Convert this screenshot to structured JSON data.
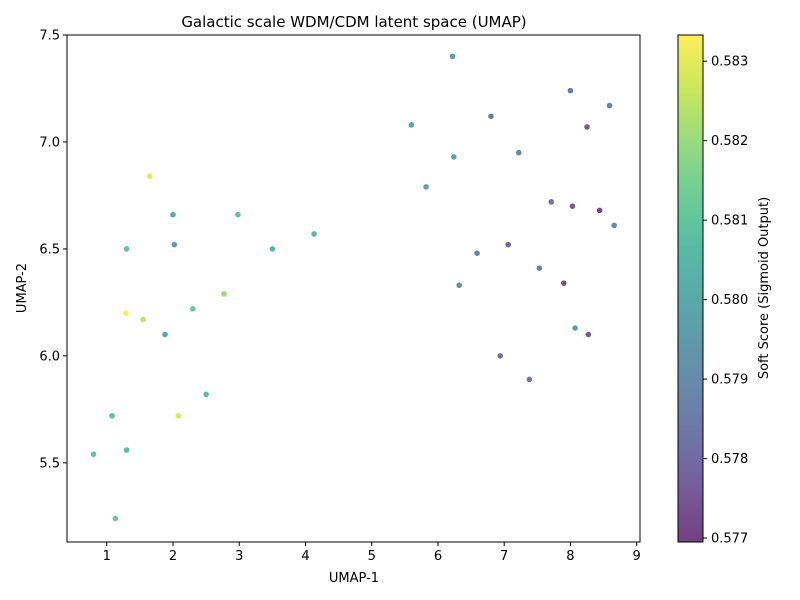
{
  "chart_data": {
    "type": "scatter",
    "title": "Galactic scale WDM/CDM latent space (UMAP)",
    "xlabel": "UMAP-1",
    "ylabel": "UMAP-2",
    "xlim": [
      0.4,
      9.05
    ],
    "ylim": [
      5.13,
      7.5
    ],
    "xticks": [
      1,
      2,
      3,
      4,
      5,
      6,
      7,
      8,
      9
    ],
    "yticks": [
      5.5,
      6.0,
      6.5,
      7.0,
      7.5
    ],
    "ytick_format": 1,
    "grid": false,
    "colorbar": {
      "label": "Soft Score (Sigmoid Output)",
      "colormap": "viridis",
      "range": [
        0.57695,
        0.58333
      ],
      "ticks": [
        0.577,
        0.578,
        0.579,
        0.58,
        0.581,
        0.582,
        0.583
      ]
    },
    "points": [
      {
        "x": 0.8,
        "y": 5.54,
        "c": 0.581
      },
      {
        "x": 1.13,
        "y": 5.24,
        "c": 0.5812
      },
      {
        "x": 1.08,
        "y": 5.72,
        "c": 0.5808
      },
      {
        "x": 1.3,
        "y": 5.56,
        "c": 0.5808
      },
      {
        "x": 1.3,
        "y": 6.5,
        "c": 0.581
      },
      {
        "x": 1.29,
        "y": 6.2,
        "c": 0.5833
      },
      {
        "x": 1.55,
        "y": 6.17,
        "c": 0.5825
      },
      {
        "x": 1.65,
        "y": 6.84,
        "c": 0.583
      },
      {
        "x": 1.88,
        "y": 6.1,
        "c": 0.58
      },
      {
        "x": 2.0,
        "y": 6.66,
        "c": 0.58
      },
      {
        "x": 2.02,
        "y": 6.52,
        "c": 0.5795
      },
      {
        "x": 2.08,
        "y": 5.72,
        "c": 0.5828
      },
      {
        "x": 2.3,
        "y": 6.22,
        "c": 0.5812
      },
      {
        "x": 2.5,
        "y": 5.82,
        "c": 0.5808
      },
      {
        "x": 2.77,
        "y": 6.29,
        "c": 0.582
      },
      {
        "x": 2.98,
        "y": 6.66,
        "c": 0.581
      },
      {
        "x": 3.5,
        "y": 6.5,
        "c": 0.5805
      },
      {
        "x": 4.13,
        "y": 6.57,
        "c": 0.5805
      },
      {
        "x": 5.6,
        "y": 7.08,
        "c": 0.58
      },
      {
        "x": 5.82,
        "y": 6.79,
        "c": 0.5798
      },
      {
        "x": 6.22,
        "y": 7.4,
        "c": 0.5797
      },
      {
        "x": 6.24,
        "y": 6.93,
        "c": 0.5797
      },
      {
        "x": 6.32,
        "y": 6.33,
        "c": 0.5791
      },
      {
        "x": 6.59,
        "y": 6.48,
        "c": 0.5786
      },
      {
        "x": 6.8,
        "y": 7.12,
        "c": 0.5784
      },
      {
        "x": 6.94,
        "y": 6.0,
        "c": 0.5781
      },
      {
        "x": 7.06,
        "y": 6.52,
        "c": 0.5779
      },
      {
        "x": 7.22,
        "y": 6.95,
        "c": 0.579
      },
      {
        "x": 7.38,
        "y": 5.89,
        "c": 0.5784
      },
      {
        "x": 7.53,
        "y": 6.41,
        "c": 0.5787
      },
      {
        "x": 7.71,
        "y": 6.72,
        "c": 0.5783
      },
      {
        "x": 7.9,
        "y": 6.34,
        "c": 0.5774
      },
      {
        "x": 8.0,
        "y": 7.24,
        "c": 0.5784
      },
      {
        "x": 8.03,
        "y": 6.7,
        "c": 0.5775
      },
      {
        "x": 8.07,
        "y": 6.13,
        "c": 0.5795
      },
      {
        "x": 8.25,
        "y": 7.07,
        "c": 0.5776
      },
      {
        "x": 8.27,
        "y": 6.1,
        "c": 0.5775
      },
      {
        "x": 8.44,
        "y": 6.68,
        "c": 0.5771
      },
      {
        "x": 8.59,
        "y": 7.17,
        "c": 0.5787
      },
      {
        "x": 8.66,
        "y": 6.61,
        "c": 0.579
      }
    ]
  }
}
